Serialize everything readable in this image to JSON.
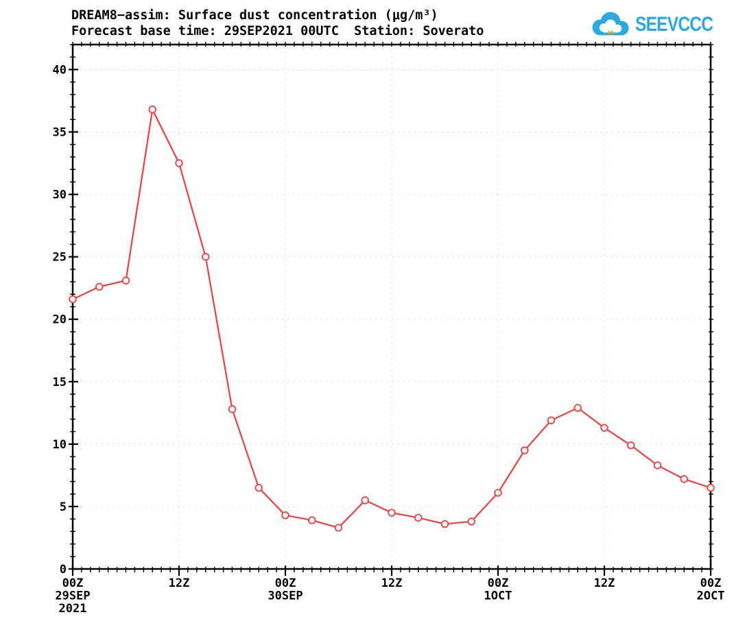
{
  "logo": {
    "text": "SEEVCCC",
    "cloud_color": "#29abe2",
    "text_color": "#29abe2",
    "arrow_color": "#d9a41f"
  },
  "chart_data": {
    "type": "line",
    "title": "DREAM8−assim: Surface dust concentration (μg/m³)",
    "subtitle": "Forecast base time: 29SEP2021 00UTC  Station: Soverato",
    "model": "DREAM8-assim",
    "forecast_base_time": "29SEP2021 00UTC",
    "station": "Soverato",
    "xlabel": "",
    "ylabel": "",
    "grid": {
      "show": true,
      "color": "#c8c8c8",
      "style": "dotted"
    },
    "x_axis": {
      "range_hours": [
        0,
        72
      ],
      "minor_step_hours": 1,
      "major_step_hours": 12,
      "ticks": [
        {
          "hour": 0,
          "lines": [
            "00Z",
            "29SEP",
            "2021"
          ]
        },
        {
          "hour": 12,
          "lines": [
            "12Z"
          ]
        },
        {
          "hour": 24,
          "lines": [
            "00Z",
            "30SEP"
          ]
        },
        {
          "hour": 36,
          "lines": [
            "12Z"
          ]
        },
        {
          "hour": 48,
          "lines": [
            "00Z",
            "1OCT"
          ]
        },
        {
          "hour": 60,
          "lines": [
            "12Z"
          ]
        },
        {
          "hour": 72,
          "lines": [
            "00Z",
            "2OCT"
          ]
        }
      ]
    },
    "y_axis": {
      "range": [
        0,
        42
      ],
      "minor_step": 1,
      "ticks": [
        0,
        5,
        10,
        15,
        20,
        25,
        30,
        35,
        40
      ]
    },
    "series": [
      {
        "name": "Surface dust concentration (μg/m³)",
        "color": "#fa3c3c",
        "marker": "open-circle",
        "x_hours": [
          0,
          3,
          6,
          9,
          12,
          15,
          18,
          21,
          24,
          27,
          30,
          33,
          36,
          39,
          42,
          45,
          48,
          51,
          54,
          57,
          60,
          63,
          66,
          69,
          72
        ],
        "values": [
          21.6,
          22.6,
          23.1,
          36.8,
          32.5,
          25.0,
          12.8,
          6.5,
          4.3,
          3.9,
          3.3,
          5.5,
          4.5,
          4.1,
          3.6,
          3.8,
          6.1,
          9.5,
          11.9,
          12.9,
          11.3,
          9.9,
          8.3,
          7.2,
          6.5
        ]
      }
    ]
  }
}
